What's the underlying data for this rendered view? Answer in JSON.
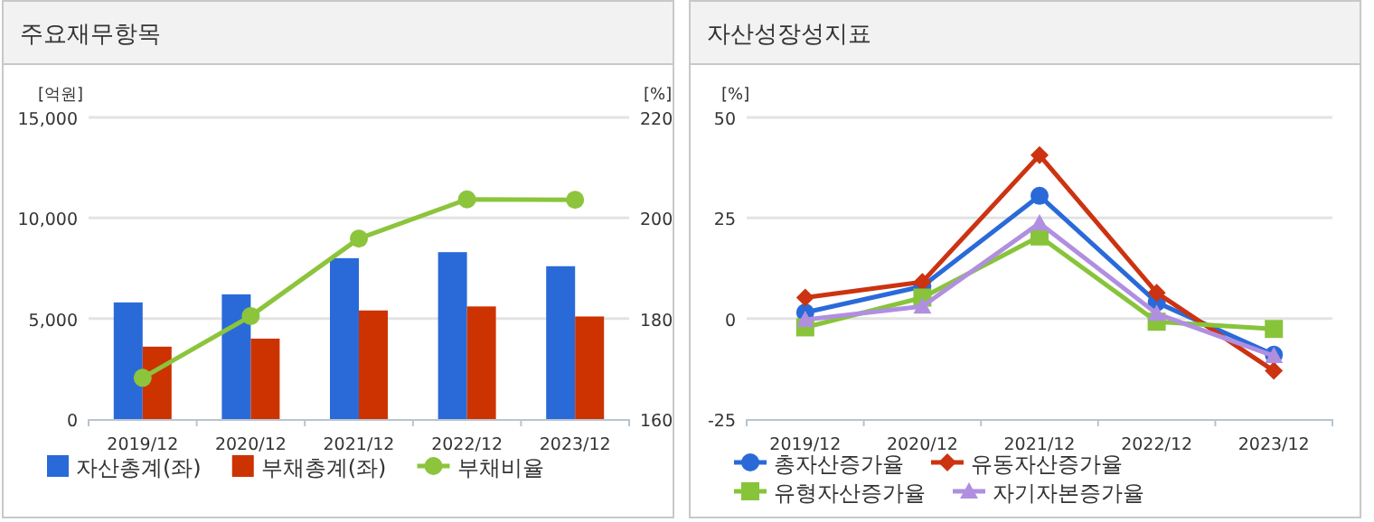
{
  "chart_data": [
    {
      "type": "bar",
      "title": "주요재무항목",
      "ylabel": "[억원]",
      "y2label": "[%]",
      "categories": [
        "2019/12",
        "2020/12",
        "2021/12",
        "2022/12",
        "2023/12"
      ],
      "series": [
        {
          "name": "자산총계(좌)",
          "color": "#2a6ad8",
          "values": [
            5800,
            6200,
            8000,
            8300,
            7600
          ]
        },
        {
          "name": "부채총계(좌)",
          "color": "#cc3300",
          "values": [
            3600,
            4000,
            5400,
            5600,
            5100
          ]
        },
        {
          "name": "부채비율",
          "type": "line",
          "axis": "y2",
          "marker": "circle",
          "color": "#8cc43c",
          "values": [
            168.2,
            180.5,
            195.9,
            203.7,
            203.6
          ]
        }
      ],
      "ylim": [
        0,
        15000
      ],
      "yticks": [
        0,
        {
          "value": 5000,
          "label": "5,000"
        },
        {
          "value": 10000,
          "label": "10,000"
        },
        {
          "value": 15000,
          "label": "15,000"
        }
      ],
      "y2lim": [
        160,
        220
      ],
      "y2ticks": [
        160,
        180,
        200,
        220
      ],
      "grid": "y",
      "legend": "bottom"
    },
    {
      "type": "line",
      "title": "자산성장성지표",
      "ylabel": "[%]",
      "categories": [
        "2019/12",
        "2020/12",
        "2021/12",
        "2022/12",
        "2023/12"
      ],
      "series": [
        {
          "name": "총자산증가율",
          "color": "#2a6ad8",
          "marker": "circle",
          "values": [
            1.5,
            8,
            30.5,
            4,
            -9
          ]
        },
        {
          "name": "유동자산증가율",
          "color": "#cc3311",
          "marker": "diamond",
          "values": [
            5.2,
            9.1,
            40.6,
            6.4,
            -13
          ]
        },
        {
          "name": "유형자산증가율",
          "color": "#88c43a",
          "marker": "square",
          "values": [
            -2.2,
            5.2,
            20.4,
            -0.8,
            -2.6
          ]
        },
        {
          "name": "자기자본증가율",
          "color": "#b08fe0",
          "marker": "triangle",
          "values": [
            -0.3,
            3,
            23.7,
            1.2,
            -9.3
          ]
        }
      ],
      "ylim": [
        -25,
        50
      ],
      "yticks": [
        -25,
        0,
        25,
        50
      ],
      "grid": "y",
      "legend": "bottom"
    }
  ]
}
